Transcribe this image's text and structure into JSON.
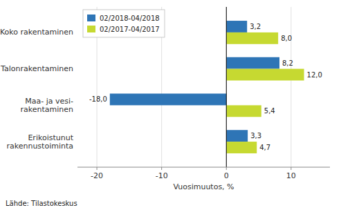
{
  "chart_data": {
    "type": "bar",
    "orientation": "horizontal",
    "categories": [
      "Erikoistunut\nrakennustoiminta",
      "Maa- ja vesi-\nrakentaminen",
      "Talonrakentaminen",
      "Koko rakentaminen"
    ],
    "series": [
      {
        "name": "02/2018-04/2018",
        "color": "#2E75B6",
        "values": [
          3.3,
          -18.0,
          8.2,
          3.2
        ],
        "value_labels": [
          "3,3",
          "-18,0",
          "8,2",
          "3,2"
        ]
      },
      {
        "name": "02/2017-04/2017",
        "color": "#C6D931",
        "values": [
          4.7,
          5.4,
          12.0,
          8.0
        ],
        "value_labels": [
          "4,7",
          "5,4",
          "12,0",
          "8,0"
        ]
      }
    ],
    "xlabel": "Vuosimuutos, %",
    "xlim": [
      -23,
      16
    ],
    "xticks": [
      -20,
      -10,
      0,
      10
    ],
    "grid": true,
    "legend": "upper left",
    "data_labels": true,
    "footnote": "Lähde: Tilastokeskus"
  }
}
